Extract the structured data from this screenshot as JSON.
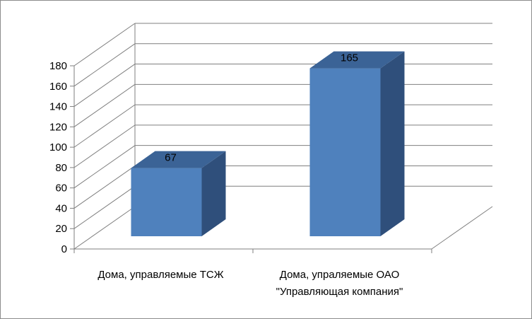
{
  "chart_data": {
    "type": "bar",
    "style": "3d-column",
    "categories": [
      [
        "Дома, управляемые ТСЖ"
      ],
      [
        "Дома, упраляемые ОАО",
        "\"Управляющая компания\""
      ]
    ],
    "values": [
      67,
      165
    ],
    "data_labels": [
      "67",
      "165"
    ],
    "y_ticks": [
      "0",
      "20",
      "40",
      "60",
      "80",
      "100",
      "120",
      "140",
      "160",
      "180"
    ],
    "ylim": [
      0,
      180
    ],
    "grid": true,
    "legend": "none",
    "title": "",
    "xlabel": "",
    "ylabel": "",
    "colors": {
      "bar_front": "#4f81bd",
      "bar_top": "#3b6396",
      "bar_side": "#2f4f7b",
      "grid": "#7f7f7f",
      "frame": "#8c8c8c"
    }
  }
}
